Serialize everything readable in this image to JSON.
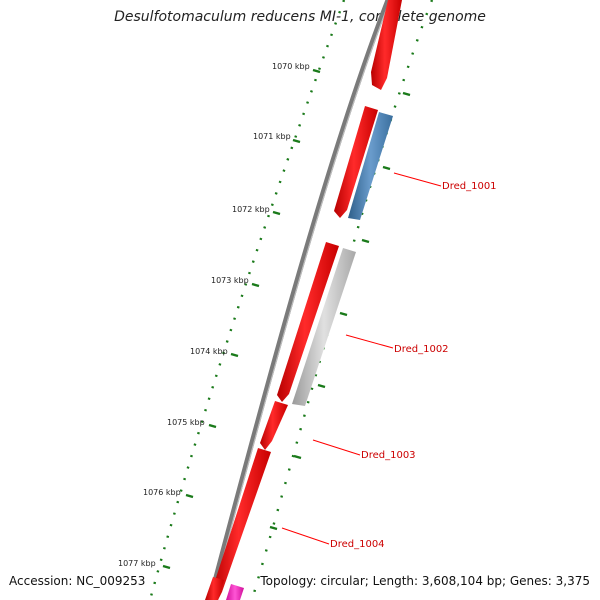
{
  "title": "Desulfotomaculum reducens MI-1, complete genome",
  "footer": {
    "accession": "Accession: NC_009253",
    "topology": "Topology: circular; Length: 3,608,104 bp; Genes: 3,375"
  },
  "tick_labels": [
    "1070 kbp",
    "1071 kbp",
    "1072 kbp",
    "1073 kbp",
    "1074 kbp",
    "1075 kbp",
    "1076 kbp",
    "1077 kbp"
  ],
  "gene_labels": [
    "Dred_1001",
    "Dred_1002",
    "Dred_1003",
    "Dred_1004"
  ],
  "colors": {
    "backbone": "#808080",
    "forward_gene": "#ff0000",
    "rna_gene": "#4682b4",
    "pseudo_gene": "#bdbdbd",
    "other_gene": "#ff33cc",
    "tick": "#1a7a1a",
    "label_line": "#ff0000",
    "label_text": "#cc0000"
  }
}
